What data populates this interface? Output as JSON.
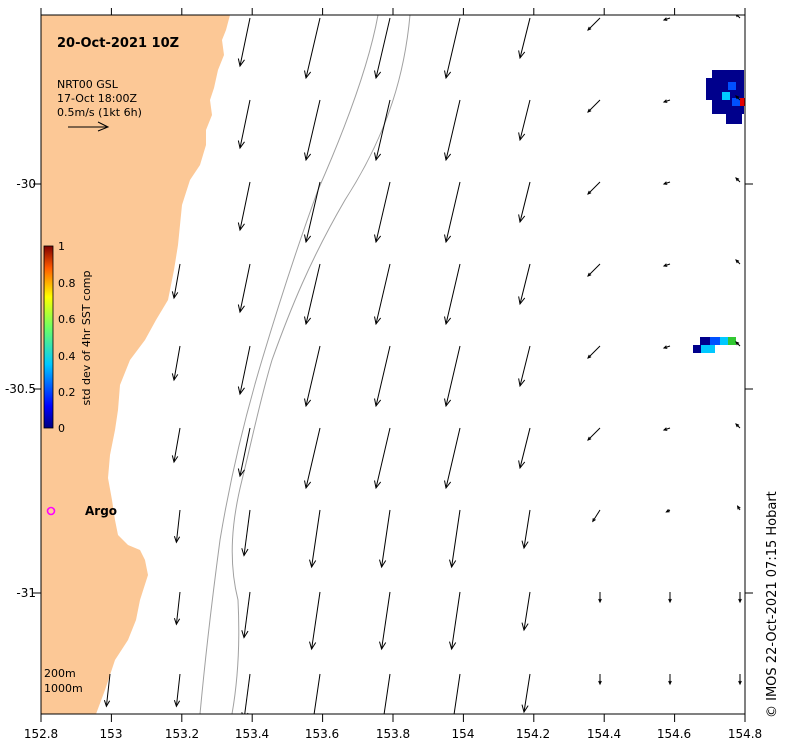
{
  "map": {
    "title": "20-Oct-2021 10Z",
    "legend_lines": [
      "NRT00 GSL",
      "17-Oct 18:00Z",
      "0.5m/s (1kt 6h)"
    ],
    "colorbar": {
      "label": "std dev of 4hr SST comp",
      "ticks": [
        "0",
        "0.2",
        "0.4",
        "0.6",
        "0.8",
        "1"
      ]
    },
    "argo_label": "Argo",
    "contour_labels": [
      "200m",
      "1000m"
    ],
    "credit": "© IMOS 22-Oct-2021 07:15 Hobart",
    "x_ticks": [
      "152.8",
      "153",
      "153.2",
      "153.4",
      "153.6",
      "153.8",
      "154",
      "154.2",
      "154.4",
      "154.6",
      "154.8"
    ],
    "y_ticks": [
      "-30",
      "-30.5",
      "-31"
    ],
    "colors": {
      "land": "#fcc896",
      "arrow": "#000000",
      "contour": "#a0a0a0",
      "argo_marker": "#ff00ff",
      "sst_dark": "#00008c",
      "sst_blue": "#0050ff",
      "sst_cyan": "#00c8ff",
      "sst_green": "#32c832",
      "sst_red": "#e60000"
    },
    "icons": {
      "argo": "argo-float-marker-icon",
      "scale_arrow": "scale-arrow-icon"
    }
  }
}
